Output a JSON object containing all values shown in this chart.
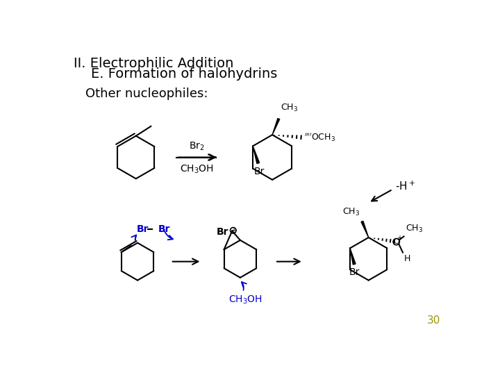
{
  "title_line1": "II. Electrophilic Addition",
  "title_line2": "    E. Formation of halohydrins",
  "subtitle": "Other nucleophiles:",
  "page_number": "30",
  "background_color": "#ffffff",
  "text_color": "#000000",
  "page_number_color": "#999900",
  "title_fontsize": 14,
  "subtitle_fontsize": 12,
  "page_fontsize": 11,
  "blue_color": "#0000cc"
}
